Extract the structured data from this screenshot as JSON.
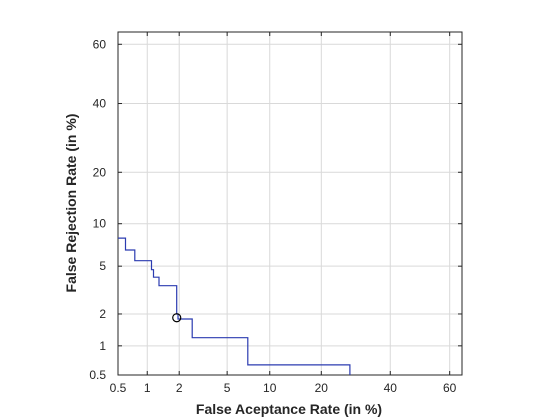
{
  "chart_data": {
    "type": "line",
    "title": "",
    "xlabel": "False Aceptance Rate (in %)",
    "ylabel": "False Rejection Rate (in %)",
    "x_scale": "probit",
    "y_scale": "probit",
    "xlim": [
      0.5,
      64
    ],
    "ylim": [
      0.5,
      64
    ],
    "x_ticks": [
      0.5,
      1,
      2,
      5,
      10,
      20,
      40,
      60
    ],
    "y_ticks": [
      0.5,
      1,
      2,
      5,
      10,
      20,
      40,
      60
    ],
    "x_tick_labels": [
      "0.5",
      "1",
      "2",
      "5",
      "10",
      "20",
      "40",
      "60"
    ],
    "y_tick_labels": [
      "0.5",
      "1",
      "2",
      "5",
      "10",
      "20",
      "40",
      "60"
    ],
    "grid": true,
    "colors": {
      "series": "#2b3bb0",
      "marker": "#000000",
      "grid": "#d9d9d9",
      "axis": "#262626"
    },
    "series": [
      {
        "x": [
          0.5,
          0.6,
          0.6,
          0.75,
          0.75,
          1.1,
          1.1,
          1.15,
          1.15,
          1.3,
          1.3,
          1.9,
          1.9,
          1.95,
          1.95,
          2.6,
          2.6,
          7.1,
          7.1,
          27.5,
          27.5
        ],
        "y": [
          8.0,
          8.0,
          6.6,
          6.6,
          5.5,
          5.5,
          4.7,
          4.7,
          4.1,
          4.1,
          3.5,
          3.5,
          2.0,
          2.0,
          1.8,
          1.8,
          1.2,
          1.2,
          0.64,
          0.64,
          0.5
        ]
      }
    ],
    "markers": [
      {
        "x": 1.9,
        "y": 1.85,
        "shape": "circle"
      }
    ]
  }
}
